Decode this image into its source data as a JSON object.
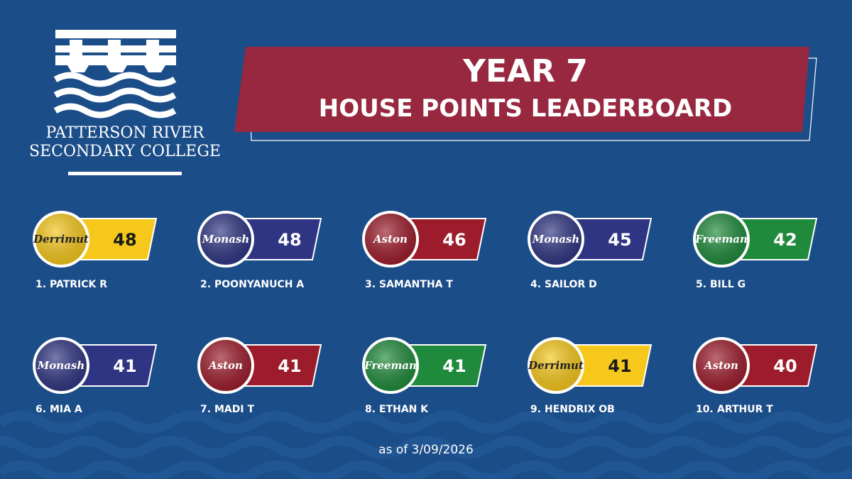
{
  "header": {
    "school": [
      "PATTERSON RIVER",
      "SECONDARY COLLEGE"
    ],
    "title": [
      "YEAR 7",
      "HOUSE POINTS LEADERBOARD"
    ]
  },
  "entries": [
    {
      "rank": "1.",
      "name": "PATRICK R",
      "house": "Derrimut",
      "color": "#f6c81c",
      "points": 48
    },
    {
      "rank": "2.",
      "name": "POONYANUCH A",
      "house": "Monash",
      "color": "#2f3582",
      "points": 48
    },
    {
      "rank": "3.",
      "name": "SAMANTHA T",
      "house": "Aston",
      "color": "#9c1c2b",
      "points": 46
    },
    {
      "rank": "4.",
      "name": "SAILOR D",
      "house": "Monash",
      "color": "#2f3582",
      "points": 45
    },
    {
      "rank": "5.",
      "name": "BILL G",
      "house": "Freeman",
      "color": "#1f8a3b",
      "points": 42
    },
    {
      "rank": "6.",
      "name": "MIA A",
      "house": "Monash",
      "color": "#2f3582",
      "points": 41
    },
    {
      "rank": "7.",
      "name": "MADI T",
      "house": "Aston",
      "color": "#9c1c2b",
      "points": 41
    },
    {
      "rank": "8.",
      "name": "ETHAN K",
      "house": "Freeman",
      "color": "#1f8a3b",
      "points": 41
    },
    {
      "rank": "9.",
      "name": "HENDRIX OB",
      "house": "Derrimut",
      "color": "#f6c81c",
      "points": 41
    },
    {
      "rank": "10.",
      "name": "ARTHUR T",
      "house": "Aston",
      "color": "#9c1c2b",
      "points": 40
    }
  ],
  "footer": "as of 3/09/2026"
}
